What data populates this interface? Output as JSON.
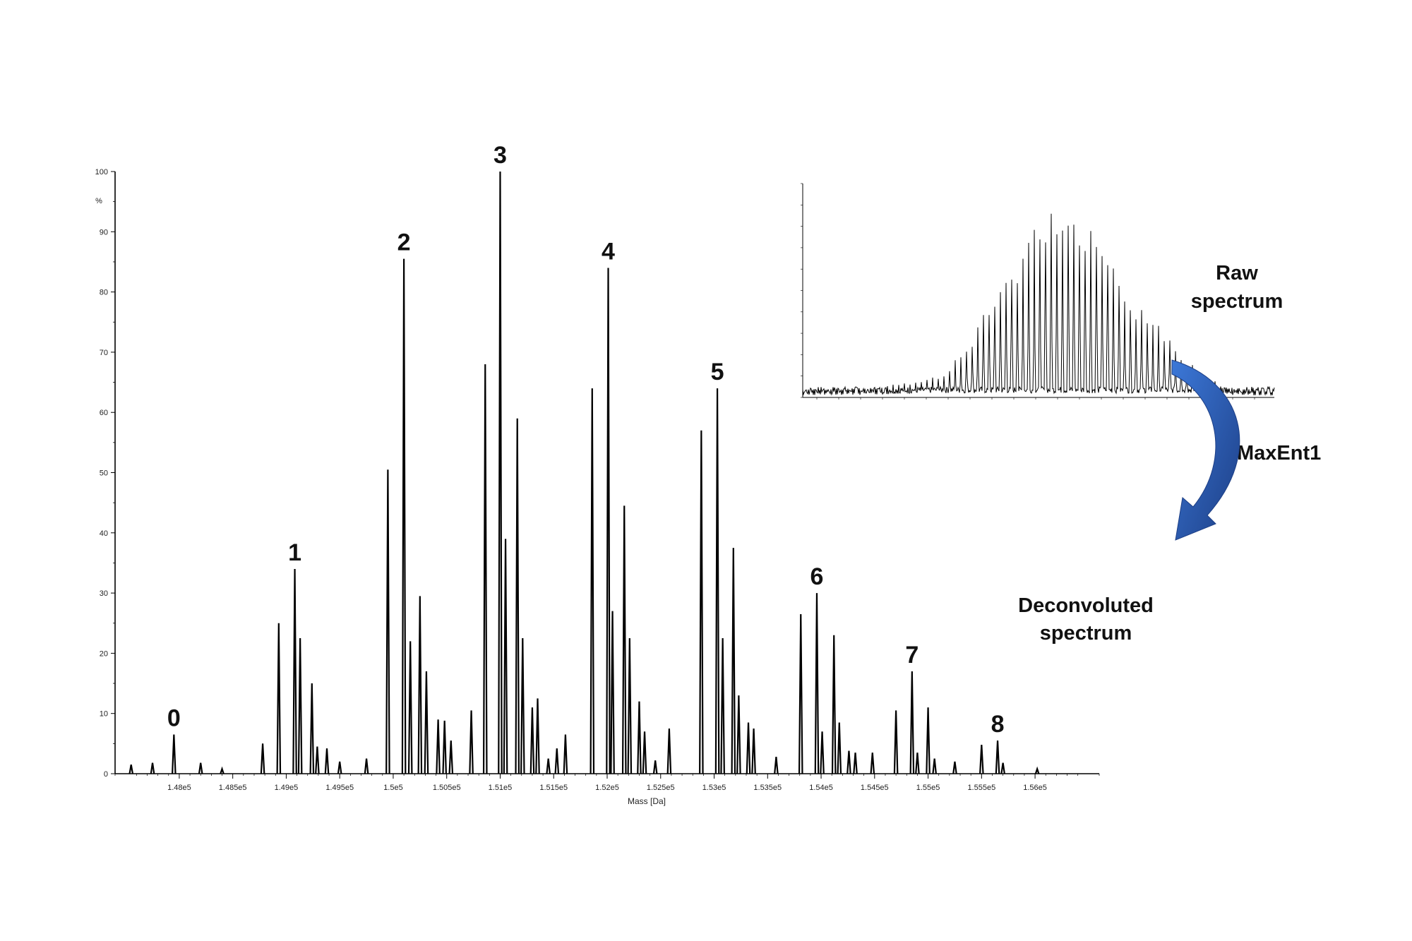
{
  "chart_data": [
    {
      "type": "line",
      "name": "deconvoluted",
      "xlabel": "Mass [Da]",
      "ylabel": "%",
      "xlim": [
        147400,
        156600
      ],
      "ylim": [
        0,
        100
      ],
      "x_ticks": [
        148000,
        148500,
        149000,
        149500,
        150000,
        150500,
        151000,
        151500,
        152000,
        152500,
        153000,
        153500,
        154000,
        154500,
        155000,
        155500,
        156000
      ],
      "x_tick_labels": [
        "1.48e5",
        "1.485e5",
        "1.49e5",
        "1.495e5",
        "1.5e5",
        "1.505e5",
        "1.51e5",
        "1.515e5",
        "1.52e5",
        "1.525e5",
        "1.53e5",
        "1.535e5",
        "1.54e5",
        "1.545e5",
        "1.55e5",
        "1.555e5",
        "1.56e5"
      ],
      "y_ticks": [
        0,
        10,
        20,
        30,
        40,
        50,
        60,
        70,
        80,
        90,
        100
      ],
      "y_tick_labels": [
        "0",
        "10",
        "20",
        "30",
        "40",
        "50",
        "60",
        "70",
        "80",
        "90",
        "100"
      ],
      "peaks": [
        {
          "x": 147550,
          "y": 1.5
        },
        {
          "x": 147750,
          "y": 1.8
        },
        {
          "x": 147950,
          "y": 6.5
        },
        {
          "x": 148200,
          "y": 1.8
        },
        {
          "x": 148400,
          "y": 0.8
        },
        {
          "x": 148780,
          "y": 5.0
        },
        {
          "x": 148930,
          "y": 25
        },
        {
          "x": 149080,
          "y": 34
        },
        {
          "x": 149130,
          "y": 22.5
        },
        {
          "x": 149240,
          "y": 15
        },
        {
          "x": 149290,
          "y": 4.5
        },
        {
          "x": 149380,
          "y": 4.2
        },
        {
          "x": 149500,
          "y": 2.0
        },
        {
          "x": 149750,
          "y": 2.5
        },
        {
          "x": 149950,
          "y": 50.5
        },
        {
          "x": 150100,
          "y": 85.5
        },
        {
          "x": 150160,
          "y": 22
        },
        {
          "x": 150250,
          "y": 29.5
        },
        {
          "x": 150310,
          "y": 17
        },
        {
          "x": 150420,
          "y": 9
        },
        {
          "x": 150480,
          "y": 8.8
        },
        {
          "x": 150540,
          "y": 5.5
        },
        {
          "x": 150730,
          "y": 10.5
        },
        {
          "x": 150860,
          "y": 68
        },
        {
          "x": 151000,
          "y": 100
        },
        {
          "x": 151050,
          "y": 39
        },
        {
          "x": 151160,
          "y": 59
        },
        {
          "x": 151210,
          "y": 22.5
        },
        {
          "x": 151300,
          "y": 11
        },
        {
          "x": 151350,
          "y": 12.5
        },
        {
          "x": 151450,
          "y": 2.5
        },
        {
          "x": 151530,
          "y": 4.2
        },
        {
          "x": 151610,
          "y": 6.5
        },
        {
          "x": 151860,
          "y": 64
        },
        {
          "x": 152010,
          "y": 84
        },
        {
          "x": 152050,
          "y": 27
        },
        {
          "x": 152160,
          "y": 44.5
        },
        {
          "x": 152210,
          "y": 22.5
        },
        {
          "x": 152300,
          "y": 12
        },
        {
          "x": 152350,
          "y": 7
        },
        {
          "x": 152450,
          "y": 2.2
        },
        {
          "x": 152580,
          "y": 7.5
        },
        {
          "x": 152880,
          "y": 57
        },
        {
          "x": 153030,
          "y": 64
        },
        {
          "x": 153080,
          "y": 22.5
        },
        {
          "x": 153180,
          "y": 37.5
        },
        {
          "x": 153230,
          "y": 13
        },
        {
          "x": 153320,
          "y": 8.5
        },
        {
          "x": 153370,
          "y": 7.5
        },
        {
          "x": 153580,
          "y": 2.8
        },
        {
          "x": 153810,
          "y": 26.5
        },
        {
          "x": 153960,
          "y": 30
        },
        {
          "x": 154010,
          "y": 7
        },
        {
          "x": 154120,
          "y": 23
        },
        {
          "x": 154170,
          "y": 8.5
        },
        {
          "x": 154260,
          "y": 3.8
        },
        {
          "x": 154320,
          "y": 3.5
        },
        {
          "x": 154480,
          "y": 3.5
        },
        {
          "x": 154700,
          "y": 10.5
        },
        {
          "x": 154850,
          "y": 17
        },
        {
          "x": 154900,
          "y": 3.5
        },
        {
          "x": 155000,
          "y": 11
        },
        {
          "x": 155060,
          "y": 2.5
        },
        {
          "x": 155250,
          "y": 2.0
        },
        {
          "x": 155500,
          "y": 4.8
        },
        {
          "x": 155650,
          "y": 5.5
        },
        {
          "x": 155700,
          "y": 1.8
        },
        {
          "x": 156020,
          "y": 0.8
        }
      ],
      "peak_labels": [
        {
          "text": "0",
          "x": 147950,
          "y": 6.5
        },
        {
          "text": "1",
          "x": 149080,
          "y": 34
        },
        {
          "text": "2",
          "x": 150100,
          "y": 85.5
        },
        {
          "text": "3",
          "x": 151000,
          "y": 100
        },
        {
          "text": "4",
          "x": 152010,
          "y": 84
        },
        {
          "text": "5",
          "x": 153030,
          "y": 64
        },
        {
          "text": "6",
          "x": 153960,
          "y": 30
        },
        {
          "text": "7",
          "x": 154850,
          "y": 17
        },
        {
          "text": "8",
          "x": 155650,
          "y": 5.5
        }
      ]
    },
    {
      "type": "line",
      "name": "raw",
      "ylim": [
        0,
        100
      ],
      "envelope": [
        {
          "x": 0.0,
          "y": 4
        },
        {
          "x": 0.15,
          "y": 5
        },
        {
          "x": 0.25,
          "y": 8
        },
        {
          "x": 0.3,
          "y": 12
        },
        {
          "x": 0.35,
          "y": 25
        },
        {
          "x": 0.4,
          "y": 48
        },
        {
          "x": 0.45,
          "y": 65
        },
        {
          "x": 0.5,
          "y": 90
        },
        {
          "x": 0.55,
          "y": 98
        },
        {
          "x": 0.6,
          "y": 85
        },
        {
          "x": 0.65,
          "y": 75
        },
        {
          "x": 0.7,
          "y": 45
        },
        {
          "x": 0.75,
          "y": 35
        },
        {
          "x": 0.8,
          "y": 22
        },
        {
          "x": 0.85,
          "y": 10
        },
        {
          "x": 0.9,
          "y": 5
        },
        {
          "x": 1.0,
          "y": 3
        }
      ]
    }
  ],
  "annotations": {
    "raw_line1": "Raw",
    "raw_line2": "spectrum",
    "method": "MaxEnt1",
    "decon_line1": "Deconvoluted",
    "decon_line2": "spectrum"
  },
  "colors": {
    "trace": "#000000",
    "arrow": "#2b5fb3",
    "arrow_dark": "#1d3f86"
  }
}
